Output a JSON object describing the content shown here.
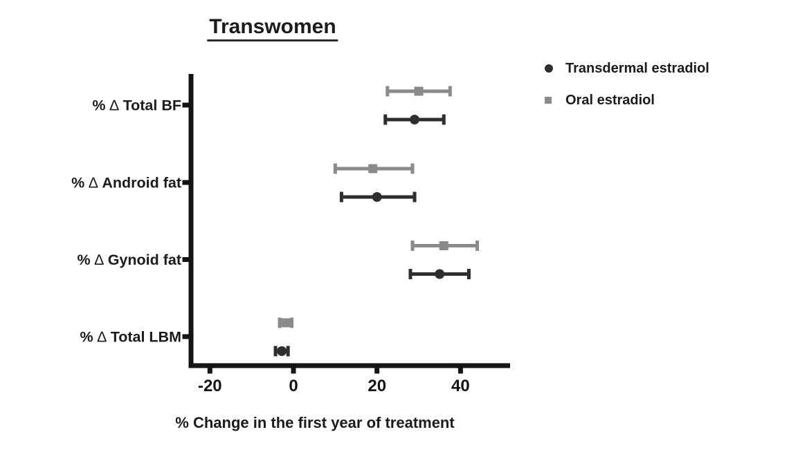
{
  "figure": {
    "title": "Transwomen",
    "x_axis_title": "% Change in the first year of treatment"
  },
  "legend": {
    "items": [
      {
        "label": "Transdermal estradiol",
        "marker": "circle",
        "color": "#2e2e2e"
      },
      {
        "label": "Oral estradiol",
        "marker": "square",
        "color": "#8a8a8a"
      }
    ]
  },
  "colors": {
    "axis": "#141414",
    "tick_label": "#141414",
    "category_label": "#1b1b1b",
    "transdermal": "#2e2e2e",
    "oral": "#8a8a8a"
  },
  "chart_data": {
    "type": "scatter",
    "subtype": "horizontal-forest-plot-with-error-bars",
    "title": "Transwomen",
    "xlabel": "% Change in the first year of treatment",
    "categories": [
      "% ∆ Total BF",
      "% ∆ Android fat",
      "% ∆ Gynoid fat",
      "% ∆ Total LBM"
    ],
    "x_ticks": [
      -20,
      0,
      20,
      40
    ],
    "xlim": [
      -25,
      52
    ],
    "grid": false,
    "legend_position": "top-right",
    "series": [
      {
        "name": "Transdermal estradiol",
        "marker": "circle",
        "color": "#2e2e2e",
        "values": [
          29,
          20,
          35,
          -2.8
        ],
        "ci_low": [
          22,
          11.5,
          28,
          -4.3
        ],
        "ci_high": [
          36,
          29,
          42,
          -1.3
        ]
      },
      {
        "name": "Oral estradiol",
        "marker": "square",
        "color": "#8a8a8a",
        "values": [
          30,
          19,
          36,
          -1.8
        ],
        "ci_low": [
          22.5,
          10,
          28.5,
          -3.3
        ],
        "ci_high": [
          37.5,
          28.5,
          44,
          -0.4
        ]
      }
    ]
  }
}
